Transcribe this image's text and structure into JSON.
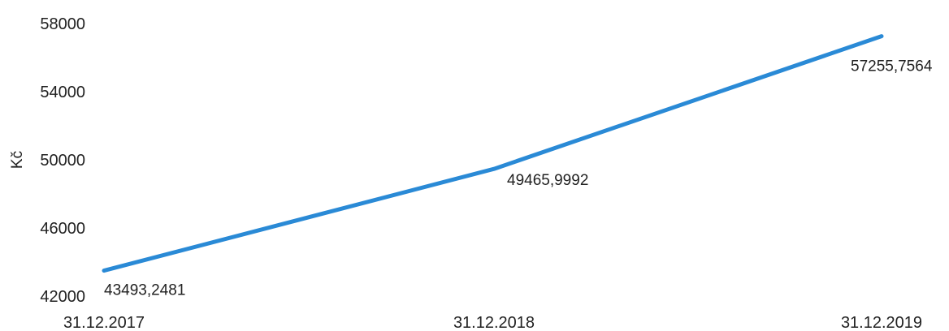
{
  "chart_data": {
    "type": "line",
    "categories": [
      "31.12.2017",
      "31.12.2018",
      "31.12.2019"
    ],
    "series": [
      {
        "values": [
          43493.2481,
          49465.9992,
          57255.7564
        ]
      }
    ],
    "data_labels": [
      "43493,2481",
      "49465,9992",
      "57255,7564"
    ],
    "title": "",
    "xlabel": "",
    "ylabel": "Kč",
    "ylim": [
      42000,
      58000
    ],
    "yticks": [
      42000,
      46000,
      50000,
      54000,
      58000
    ],
    "ytick_labels": [
      "42000",
      "46000",
      "50000",
      "54000",
      "58000"
    ],
    "grid": false,
    "legend": "none",
    "line_color": "#2a8ad6"
  }
}
